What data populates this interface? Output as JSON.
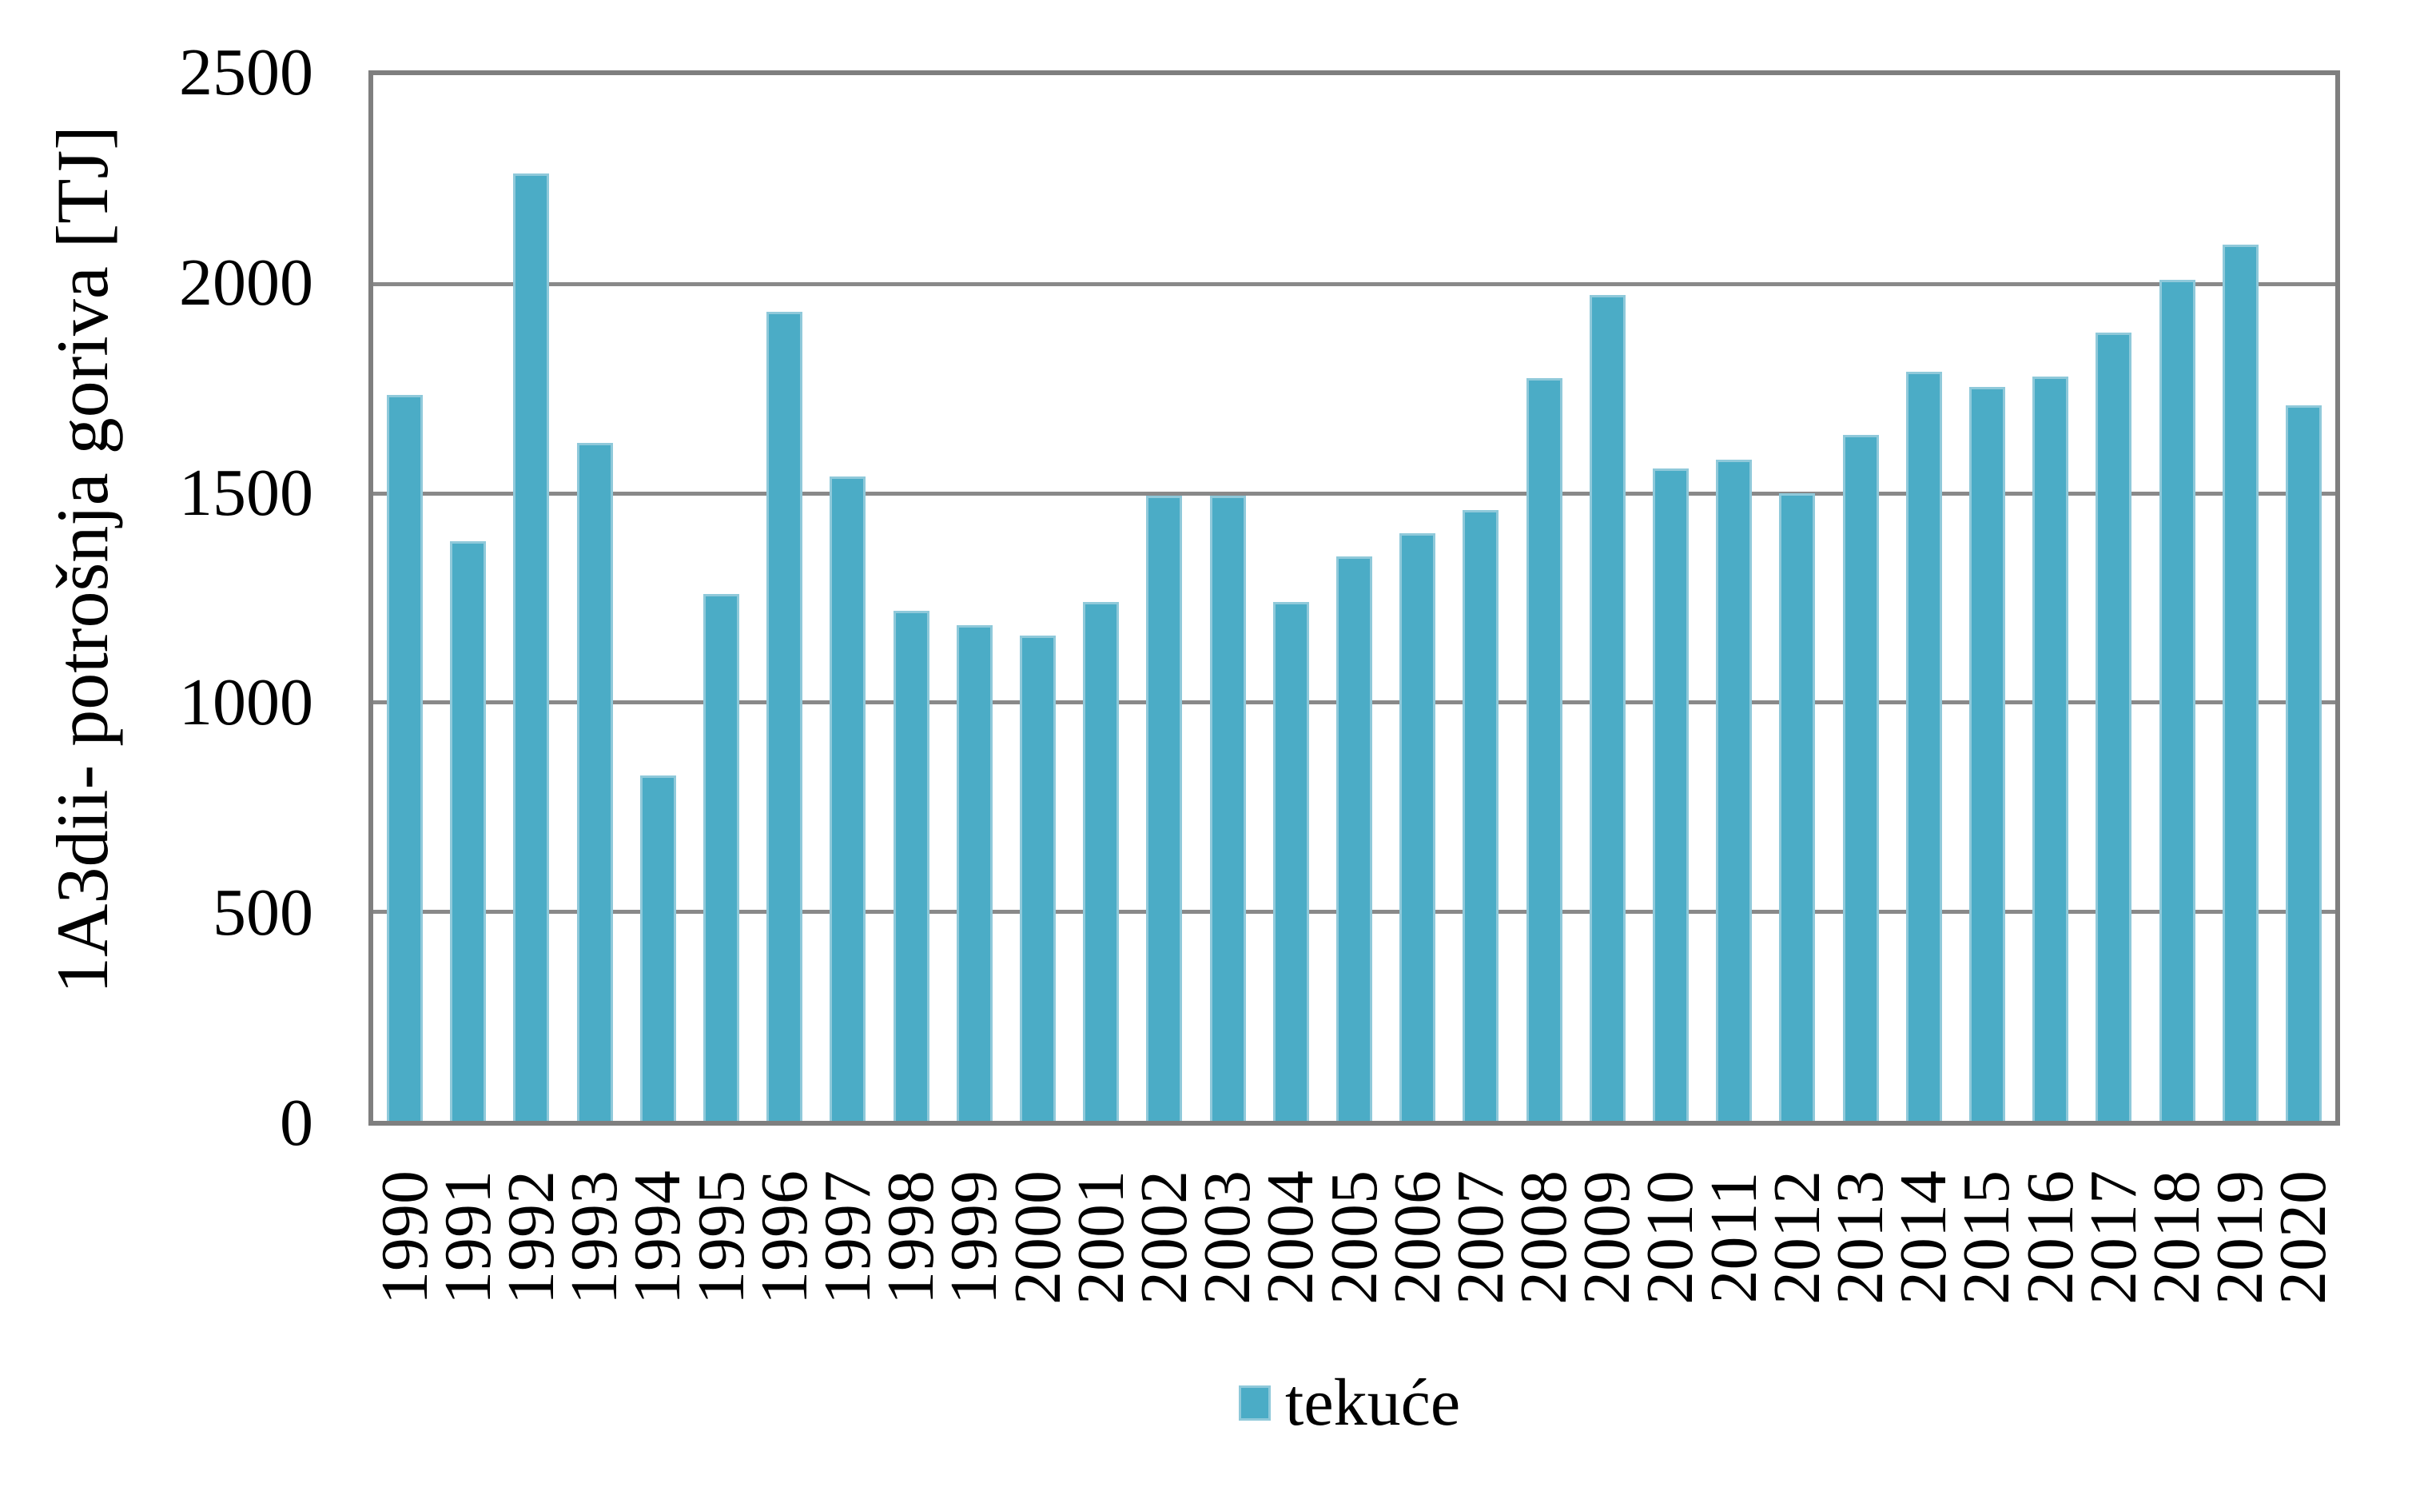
{
  "chart_data": {
    "type": "bar",
    "ylabel": "1A3dii- potrošnja goriva [TJ]",
    "xlabel": "",
    "categories": [
      "1990",
      "1991",
      "1992",
      "1993",
      "1994",
      "1995",
      "1996",
      "1997",
      "1998",
      "1999",
      "2000",
      "2001",
      "2002",
      "2003",
      "2004",
      "2005",
      "2006",
      "2007",
      "2008",
      "2009",
      "2010",
      "2011",
      "2012",
      "2013",
      "2014",
      "2015",
      "2016",
      "2017",
      "2018",
      "2019",
      "2020"
    ],
    "series": [
      {
        "name": "tekuće",
        "color": "#4bacc6",
        "values": [
          1735,
          1385,
          2265,
          1620,
          825,
          1260,
          1935,
          1540,
          1220,
          1185,
          1160,
          1240,
          1495,
          1495,
          1240,
          1350,
          1405,
          1460,
          1775,
          1975,
          1560,
          1580,
          1500,
          1640,
          1790,
          1755,
          1780,
          1885,
          2010,
          2095,
          1710
        ]
      }
    ],
    "ylim": [
      0,
      2500
    ],
    "yticks": [
      0,
      500,
      1000,
      1500,
      2000,
      2500
    ],
    "grid": true,
    "legend_position": "bottom"
  },
  "legend": {
    "items": [
      {
        "label": "tekuće",
        "color": "#4bacc6"
      }
    ]
  },
  "colors": {
    "bar_fill": "#4bacc6",
    "bar_border": "#8fc9da",
    "gridline": "#898989",
    "plot_border": "#7f7f7f",
    "text": "#000000",
    "background": "#ffffff"
  }
}
